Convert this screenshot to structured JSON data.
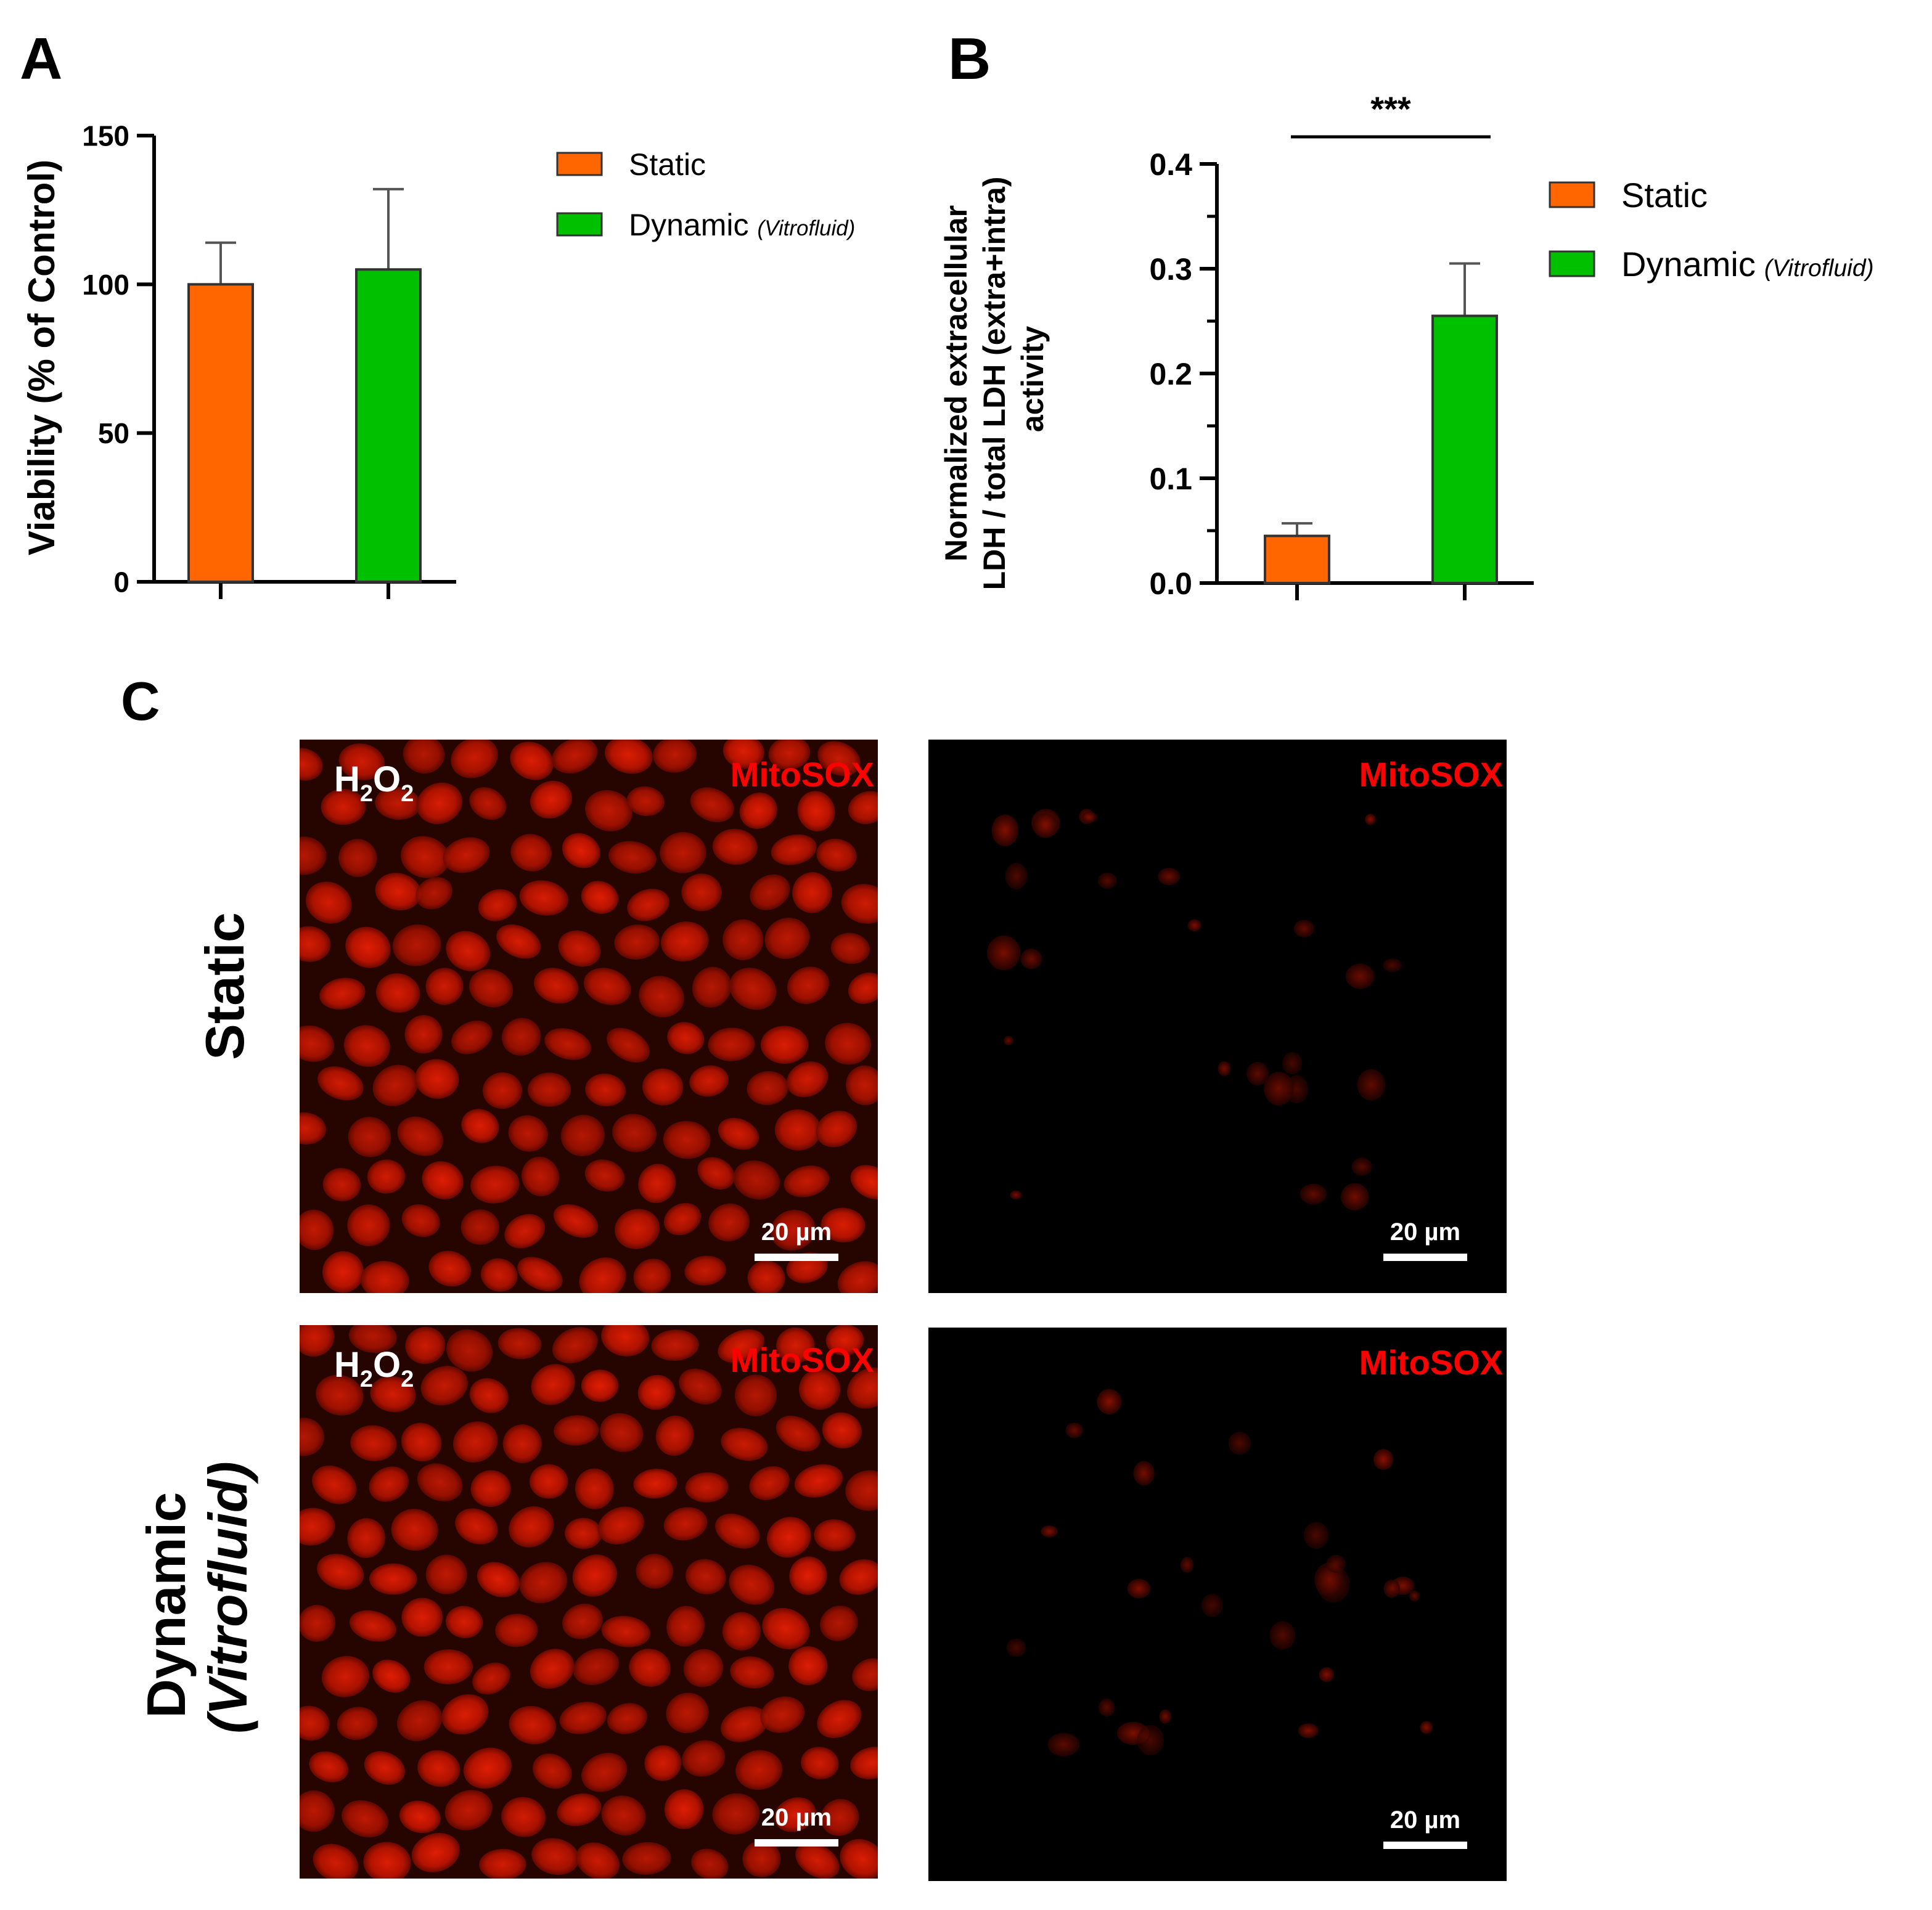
{
  "panels": {
    "a": "A",
    "b": "B",
    "c": "C"
  },
  "colors": {
    "static": "#ff6600",
    "dynamic": "#00c000",
    "micro_bg": "#000000",
    "micro_stain": "#cc1500",
    "label_red": "#ff0000"
  },
  "chart_data": [
    {
      "type": "bar",
      "panel": "A",
      "ylabel": "Viability (% of Control)",
      "ylim": [
        0,
        150
      ],
      "yticks": [
        0,
        50,
        100,
        150
      ],
      "categories": [
        "Static",
        "Dynamic"
      ],
      "values": [
        100,
        105
      ],
      "errors": [
        14,
        27
      ],
      "colors": [
        "#ff6600",
        "#00c000"
      ],
      "legend": [
        {
          "name": "Static",
          "suffix": ""
        },
        {
          "name": "Dynamic",
          "suffix": "(Vitrofluid)"
        }
      ],
      "legend_position": "right"
    },
    {
      "type": "bar",
      "panel": "B",
      "ylabel_lines": [
        "Normalized extracellular",
        "LDH / total LDH (extra+intra)",
        "activity"
      ],
      "ylim": [
        0,
        0.4
      ],
      "yticks": [
        "0.0",
        "0.1",
        "0.2",
        "0.3",
        "0.4"
      ],
      "categories": [
        "Static",
        "Dynamic"
      ],
      "values": [
        0.045,
        0.255
      ],
      "errors": [
        0.012,
        0.05
      ],
      "colors": [
        "#ff6600",
        "#00c000"
      ],
      "significance": "***",
      "legend": [
        {
          "name": "Static",
          "suffix": ""
        },
        {
          "name": "Dynamic",
          "suffix": "(Vitrofluid)"
        }
      ],
      "legend_position": "right"
    }
  ],
  "micrographs": {
    "rows": [
      {
        "label": "Static",
        "label_lines": [
          "Static"
        ]
      },
      {
        "label": "Dynamic (Vitrofluid)",
        "label_lines": [
          "Dynamic",
          "(Vitrofluid)"
        ]
      }
    ],
    "treatment": "H2O2",
    "stain": "MitoSOX",
    "scale_bar": "20 µm",
    "tiles": [
      {
        "row": 0,
        "col": 0,
        "treatment": true,
        "intensity": "high"
      },
      {
        "row": 0,
        "col": 1,
        "treatment": false,
        "intensity": "low"
      },
      {
        "row": 1,
        "col": 0,
        "treatment": true,
        "intensity": "high"
      },
      {
        "row": 1,
        "col": 1,
        "treatment": false,
        "intensity": "low"
      }
    ]
  }
}
